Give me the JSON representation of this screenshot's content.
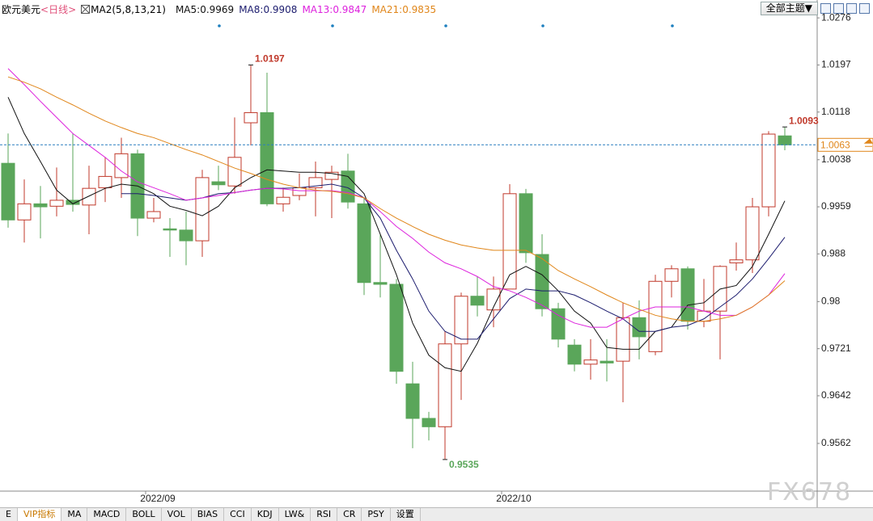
{
  "chart_data": {
    "type": "candlestick",
    "title": "欧元美元",
    "subtitle": "<日线>",
    "indicator": "MA2(5,8,13,21)",
    "categories": [
      null,
      null,
      null,
      null,
      null,
      null,
      null,
      null,
      null,
      "2022/09",
      null,
      null,
      null,
      null,
      null,
      null,
      null,
      null,
      null,
      null,
      null,
      null,
      null,
      null,
      null,
      null,
      null,
      null,
      null,
      null,
      null,
      "2022/10",
      null,
      null,
      null,
      null,
      null,
      null,
      null,
      null,
      null,
      null,
      null,
      null,
      null,
      null,
      null,
      null,
      null
    ],
    "open": [
      1.0032,
      0.9937,
      0.9964,
      0.996,
      0.997,
      0.9962,
      0.9991,
      1.0008,
      1.0048,
      0.994,
      0.9922,
      0.992,
      0.9902,
      1.0001,
      0.9994,
      1.01,
      1.0117,
      0.9964,
      0.9978,
      0.9991,
      1.0005,
      1.0019,
      0.9964,
      0.9832,
      0.9829,
      0.9662,
      0.9604,
      0.959,
      0.9729,
      0.9809,
      0.9786,
      0.9821,
      0.9981,
      0.9879,
      0.9788,
      0.9727,
      0.9695,
      0.97,
      0.97,
      0.9773,
      0.9716,
      0.9834,
      0.9855,
      0.9767,
      0.9784,
      0.9865,
      0.987,
      0.9959,
      1.0078
    ],
    "high": [
      1.0082,
      1.0005,
      0.9994,
      1.0025,
      1.0082,
      1.0028,
      1.0042,
      1.0075,
      1.0055,
      0.9974,
      0.994,
      0.9951,
      1.0021,
      1.0028,
      1.0109,
      1.0197,
      1.0184,
      0.9991,
      1.0015,
      1.0035,
      1.0028,
      1.0048,
      0.9974,
      0.9913,
      0.9838,
      0.9699,
      0.9615,
      0.975,
      0.9815,
      0.9842,
      0.9842,
      0.9997,
      0.9989,
      0.9913,
      0.9798,
      0.9737,
      0.9737,
      0.9737,
      0.9798,
      0.9802,
      0.9845,
      0.9861,
      0.9859,
      0.9838,
      0.9861,
      0.9899,
      0.9974,
      1.0086,
      1.0093
    ],
    "low": [
      0.9924,
      0.9899,
      0.9906,
      0.9943,
      0.9951,
      0.9913,
      0.9967,
      0.9974,
      0.991,
      0.9933,
      0.9875,
      0.9861,
      0.9875,
      0.9987,
      0.9981,
      1.0062,
      0.996,
      0.9951,
      0.997,
      0.9943,
      0.994,
      0.9956,
      0.9811,
      0.9807,
      0.9662,
      0.9554,
      0.9567,
      0.9535,
      0.9635,
      0.9775,
      0.9757,
      0.9821,
      0.9865,
      0.9775,
      0.9723,
      0.9683,
      0.9669,
      0.9666,
      0.9631,
      0.9703,
      0.971,
      0.9807,
      0.9753,
      0.9757,
      0.9703,
      0.9852,
      0.9848,
      0.9943,
      1.0054
    ],
    "close": [
      0.9937,
      0.9964,
      0.9959,
      0.997,
      0.9963,
      0.999,
      1.001,
      1.0048,
      0.994,
      0.9951,
      0.992,
      0.9902,
      1.0008,
      0.9996,
      1.0042,
      1.0117,
      0.9964,
      0.9975,
      0.9991,
      1.0008,
      1.0017,
      0.9967,
      0.9832,
      0.9829,
      0.9683,
      0.9604,
      0.959,
      0.9729,
      0.9809,
      0.9794,
      0.9821,
      0.9981,
      0.9882,
      0.9788,
      0.9737,
      0.9695,
      0.9702,
      0.9697,
      0.9773,
      0.9741,
      0.9834,
      0.9855,
      0.9767,
      0.9784,
      0.9859,
      0.987,
      0.9959,
      1.0081,
      1.0063
    ],
    "up_color": "#c0392b",
    "down_color": "#5aa65a",
    "series": [
      {
        "name": "MA5:",
        "color": "#111111",
        "values": [
          1.0143,
          1.0082,
          1.0035,
          0.9987,
          0.9964,
          0.9977,
          0.999,
          0.9997,
          0.9994,
          0.9981,
          0.996,
          0.9953,
          0.9944,
          0.996,
          0.9991,
          1.0008,
          1.0021,
          1.0019,
          1.0017,
          1.0017,
          1.0015,
          1.001,
          0.9981,
          0.9913,
          0.9845,
          0.9764,
          0.971,
          0.9689,
          0.9683,
          0.973,
          0.9791,
          0.9845,
          0.9859,
          0.9845,
          0.9818,
          0.9784,
          0.9764,
          0.9723,
          0.972,
          0.972,
          0.975,
          0.9757,
          0.9794,
          0.9798,
          0.9821,
          0.9827,
          0.9859,
          0.9913,
          0.9969
        ]
      },
      {
        "name": "MA8:",
        "color": "#1c1c6e",
        "values": [
          null,
          null,
          null,
          null,
          null,
          null,
          null,
          0.9981,
          0.9981,
          0.9978,
          0.9974,
          0.997,
          0.9974,
          0.9981,
          0.9983,
          0.9987,
          0.999,
          0.999,
          0.9991,
          0.9994,
          0.9997,
          0.9991,
          0.9974,
          0.994,
          0.9886,
          0.9838,
          0.9784,
          0.975,
          0.9737,
          0.9737,
          0.9771,
          0.9805,
          0.9821,
          0.9818,
          0.9818,
          0.9811,
          0.9798,
          0.9784,
          0.9771,
          0.975,
          0.975,
          0.9757,
          0.976,
          0.9771,
          0.9791,
          0.9811,
          0.9838,
          0.9872,
          0.9908
        ]
      },
      {
        "name": "MA13:",
        "color": "#dd22dd",
        "values": [
          1.0191,
          1.0164,
          1.0136,
          1.0109,
          1.0082,
          1.0062,
          1.0042,
          1.0019,
          1.0001,
          0.9991,
          0.9981,
          0.997,
          0.9974,
          0.9978,
          0.9983,
          0.9987,
          0.999,
          0.9989,
          0.9986,
          0.9986,
          0.9986,
          0.9983,
          0.9974,
          0.9951,
          0.9926,
          0.9906,
          0.9883,
          0.9865,
          0.9855,
          0.9842,
          0.9825,
          0.9818,
          0.9807,
          0.9794,
          0.9777,
          0.9764,
          0.9757,
          0.9757,
          0.9771,
          0.9784,
          0.9791,
          0.9791,
          0.9791,
          0.9784,
          0.9777,
          0.9777,
          0.9791,
          0.9811,
          0.9847
        ]
      },
      {
        "name": "MA21:",
        "color": "#e0861a",
        "values": [
          1.0177,
          1.0168,
          1.0157,
          1.0143,
          1.013,
          1.0116,
          1.0103,
          1.0092,
          1.0082,
          1.0075,
          1.0065,
          1.0055,
          1.0046,
          1.0035,
          1.0024,
          1.0015,
          1.0005,
          0.9997,
          0.9991,
          0.9987,
          0.9985,
          0.9981,
          0.9974,
          0.9956,
          0.994,
          0.9926,
          0.9913,
          0.9903,
          0.9895,
          0.989,
          0.9886,
          0.9886,
          0.9886,
          0.9872,
          0.9852,
          0.9838,
          0.9825,
          0.9811,
          0.9798,
          0.9787,
          0.9777,
          0.9771,
          0.9767,
          0.9767,
          0.9771,
          0.9777,
          0.9791,
          0.9811,
          0.9835
        ]
      }
    ],
    "ylim": [
      0.9482,
      1.0306
    ],
    "yticks": [
      0.9562,
      0.9642,
      0.9721,
      0.98,
      0.988,
      0.9959,
      1.0038,
      1.0118,
      1.0197,
      1.0276
    ],
    "grid": false,
    "price_line": true
  },
  "ui": {
    "theme_button": "全部主题▼",
    "tabs": [
      "E",
      "VIP指标",
      "MA",
      "MACD",
      "BOLL",
      "VOL",
      "BIAS",
      "CCI",
      "KDJ",
      "LW&",
      "RSI",
      "CR",
      "PSY",
      "设置"
    ],
    "watermark": "FX678"
  }
}
